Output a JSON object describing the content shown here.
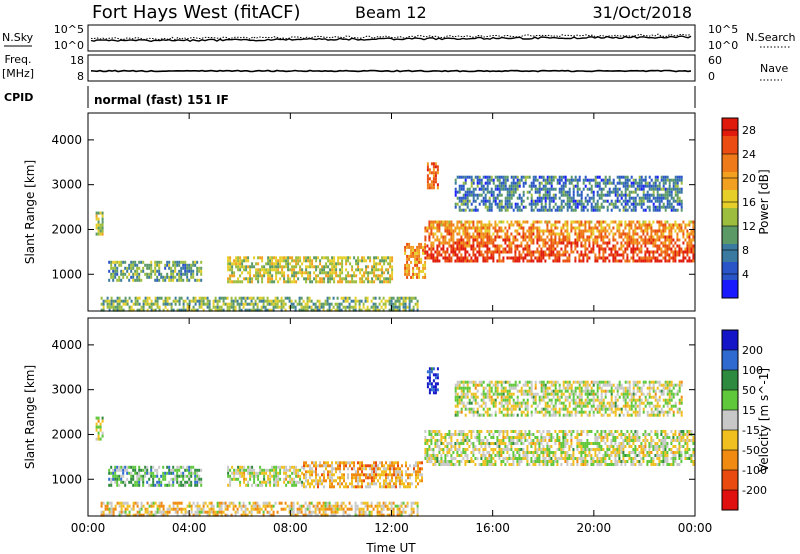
{
  "header": {
    "station": "Fort Hays West (fitACF)",
    "beam": "Beam 12",
    "date": "31/Oct/2018"
  },
  "strip_labels": {
    "nsky": "N.Sky",
    "nsearch": "N.Search",
    "freq_line1": "Freq.",
    "freq_line2": "[MHz]",
    "cpid": "CPID",
    "nave": "Nave",
    "cpid_value": "normal (fast) 151 IF",
    "noise_ticks_left": [
      "10^5",
      "10^0"
    ],
    "noise_ticks_right": [
      "10^5",
      "10^0"
    ],
    "freq_ticks": [
      "18",
      "8"
    ],
    "nave_ticks": [
      "60",
      "0"
    ]
  },
  "chart_data": [
    {
      "type": "heatmap",
      "title": "",
      "ylabel": "Slant Range [km]",
      "xlabel": "Time UT",
      "x_ticks": [
        "00:00",
        "04:00",
        "08:00",
        "12:00",
        "16:00",
        "20:00",
        "00:00"
      ],
      "y_ticks": [
        "1000",
        "2000",
        "3000",
        "4000"
      ],
      "xlim_hours": [
        0,
        24
      ],
      "ylim_km": [
        180,
        4600
      ],
      "colorbar": {
        "label": "Power [dB]",
        "ticks": [
          "4",
          "8",
          "12",
          "16",
          "20",
          "24",
          "28"
        ],
        "range": [
          0,
          30
        ],
        "colors": [
          "#1a1aff",
          "#2a55c8",
          "#3a7aa0",
          "#5b9a66",
          "#9dbd3e",
          "#e7cf2a",
          "#f2a020",
          "#ee7a1a",
          "#ea4c12",
          "#e01b0c"
        ]
      },
      "regions": [
        {
          "t0": 0.3,
          "t1": 0.6,
          "r0": 1900,
          "r1": 2400,
          "level": 0.45
        },
        {
          "t0": 0.8,
          "t1": 4.5,
          "r0": 850,
          "r1": 1300,
          "level": 0.35
        },
        {
          "t0": 5.5,
          "t1": 12.0,
          "r0": 800,
          "r1": 1400,
          "level": 0.5
        },
        {
          "t0": 12.5,
          "t1": 13.3,
          "r0": 900,
          "r1": 1700,
          "level": 0.7
        },
        {
          "t0": 13.4,
          "t1": 13.8,
          "r0": 2900,
          "r1": 3500,
          "level": 0.8
        },
        {
          "t0": 13.3,
          "t1": 23.9,
          "r0": 1300,
          "r1": 2200,
          "level": 0.75
        },
        {
          "t0": 14.5,
          "t1": 23.5,
          "r0": 2400,
          "r1": 3200,
          "level": 0.25
        },
        {
          "t0": 0.5,
          "t1": 13.0,
          "r0": 200,
          "r1": 500,
          "level": 0.4
        }
      ]
    },
    {
      "type": "heatmap",
      "title": "",
      "ylabel": "Slant Range [km]",
      "xlabel": "Time UT",
      "x_ticks": [
        "00:00",
        "04:00",
        "08:00",
        "12:00",
        "16:00",
        "20:00",
        "00:00"
      ],
      "y_ticks": [
        "1000",
        "2000",
        "3000",
        "4000"
      ],
      "xlim_hours": [
        0,
        24
      ],
      "ylim_km": [
        180,
        4600
      ],
      "colorbar": {
        "label": "Velocity [m s^-1]",
        "ticks": [
          "200",
          "100",
          "50",
          "15",
          "-15",
          "-50",
          "-100",
          "-200"
        ],
        "range": [
          -250,
          250
        ],
        "colors": [
          "#1515c8",
          "#2e6ad0",
          "#2e8a3e",
          "#5ec83a",
          "#c8c8c8",
          "#f0c020",
          "#f08a10",
          "#e84a10",
          "#e01010"
        ]
      },
      "regions": [
        {
          "t0": 0.3,
          "t1": 0.6,
          "r0": 1900,
          "r1": 2400,
          "level": 0.5
        },
        {
          "t0": 0.8,
          "t1": 4.5,
          "r0": 850,
          "r1": 1300,
          "level": 0.35
        },
        {
          "t0": 5.5,
          "t1": 8.5,
          "r0": 850,
          "r1": 1300,
          "level": 0.5
        },
        {
          "t0": 8.5,
          "t1": 13.2,
          "r0": 800,
          "r1": 1400,
          "level": 0.65
        },
        {
          "t0": 13.4,
          "t1": 13.8,
          "r0": 2900,
          "r1": 3500,
          "level": 0.05
        },
        {
          "t0": 13.3,
          "t1": 23.9,
          "r0": 1300,
          "r1": 2100,
          "level": 0.5
        },
        {
          "t0": 14.5,
          "t1": 23.5,
          "r0": 2400,
          "r1": 3200,
          "level": 0.5
        },
        {
          "t0": 0.5,
          "t1": 13.0,
          "r0": 200,
          "r1": 500,
          "level": 0.6
        }
      ]
    }
  ]
}
